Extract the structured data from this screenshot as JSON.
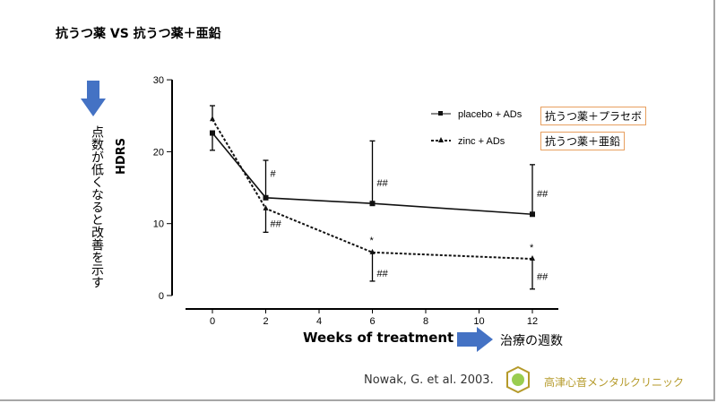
{
  "slide": {
    "title": "抗うつ薬 VS 抗うつ薬＋亜鉛",
    "note_vertical": "点数が低くなると改善を示す",
    "x_note": "治療の週数",
    "citation": "Nowak, G. et al. 2003.",
    "clinic": "高津心音メンタルクリニック",
    "legend_jp": [
      "抗うつ薬＋プラセボ",
      "抗うつ薬＋亜鉛"
    ]
  },
  "chart_data": {
    "type": "line",
    "title": "",
    "xlabel": "Weeks of treatment",
    "ylabel": "HDRS",
    "xlim": [
      -1,
      13
    ],
    "ylim": [
      0,
      30
    ],
    "xticks": [
      0,
      2,
      4,
      6,
      8,
      10,
      12
    ],
    "yticks": [
      0,
      10,
      20,
      30
    ],
    "x": [
      0,
      2,
      6,
      12
    ],
    "series": [
      {
        "name": "placebo + ADs",
        "style": "solid",
        "marker": "square",
        "values": [
          22.6,
          13.6,
          12.8,
          11.3
        ],
        "err_to": [
          20.2,
          18.8,
          21.5,
          18.2
        ]
      },
      {
        "name": "zinc + ADs",
        "style": "dotted",
        "marker": "triangle",
        "values": [
          24.5,
          12.1,
          6.0,
          5.1
        ],
        "err_to": [
          26.4,
          8.8,
          2.0,
          0.9
        ]
      }
    ],
    "annotations": [
      {
        "x": 2,
        "y": 16.5,
        "text": "#"
      },
      {
        "x": 6,
        "y": 15.2,
        "text": "##"
      },
      {
        "x": 12,
        "y": 13.7,
        "text": "##"
      },
      {
        "x": 2,
        "y": 9.5,
        "text": "##"
      },
      {
        "x": 6,
        "y": 7.2,
        "text": "*"
      },
      {
        "x": 6,
        "y": 2.6,
        "text": "##"
      },
      {
        "x": 12,
        "y": 6.2,
        "text": "*"
      },
      {
        "x": 12,
        "y": 2.2,
        "text": "##"
      }
    ],
    "legend": "top-right"
  }
}
